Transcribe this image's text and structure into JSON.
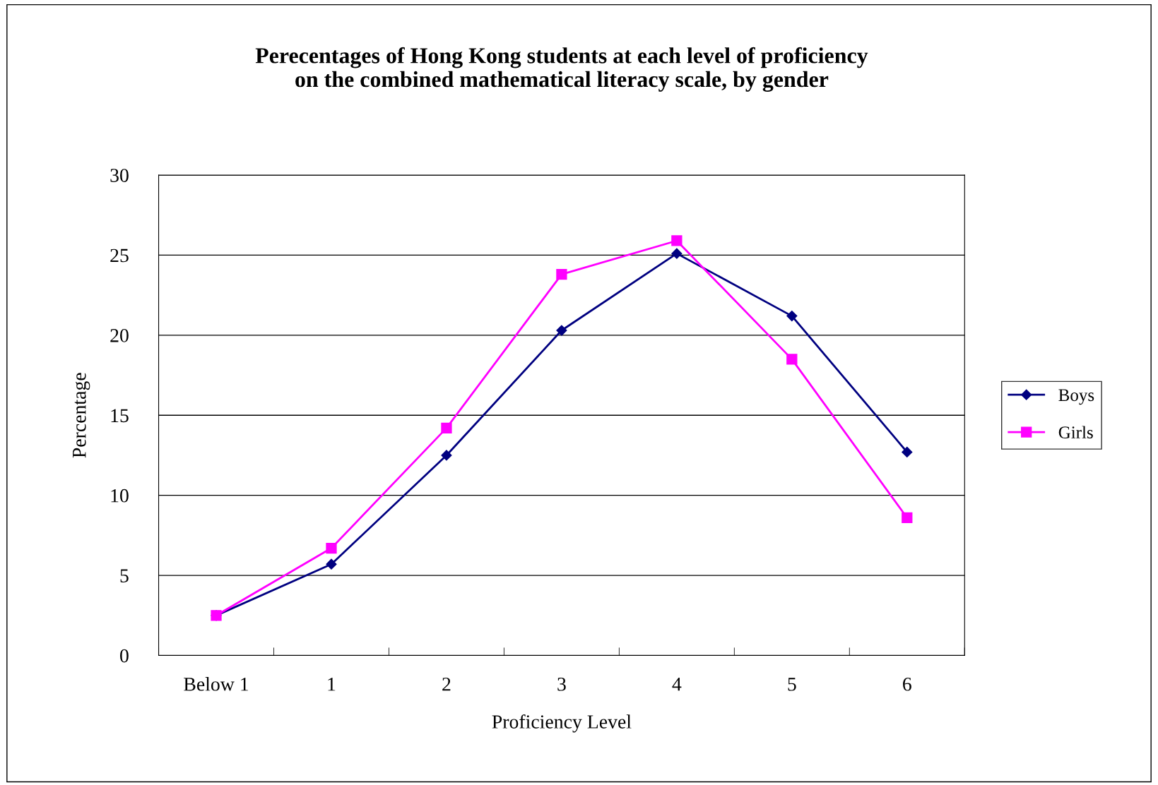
{
  "chart_data": {
    "type": "line",
    "title": "Perecentages of Hong Kong students at each level of proficiency\non the combined mathematical literacy scale, by gender",
    "xlabel": "Proficiency Level",
    "ylabel": "Percentage",
    "categories": [
      "Below 1",
      "1",
      "2",
      "3",
      "4",
      "5",
      "6"
    ],
    "series": [
      {
        "name": "Boys",
        "color": "#000080",
        "marker": "diamond",
        "values": [
          2.5,
          5.7,
          12.5,
          20.3,
          25.1,
          21.2,
          12.7
        ]
      },
      {
        "name": "Girls",
        "color": "#ff00ff",
        "marker": "square",
        "values": [
          2.5,
          6.7,
          14.2,
          23.8,
          25.9,
          18.5,
          8.6
        ]
      }
    ],
    "ylim": [
      0,
      30
    ],
    "yticks": [
      0,
      5,
      10,
      15,
      20,
      25,
      30
    ],
    "grid": "y",
    "legend": "right",
    "line_style": "solid"
  }
}
